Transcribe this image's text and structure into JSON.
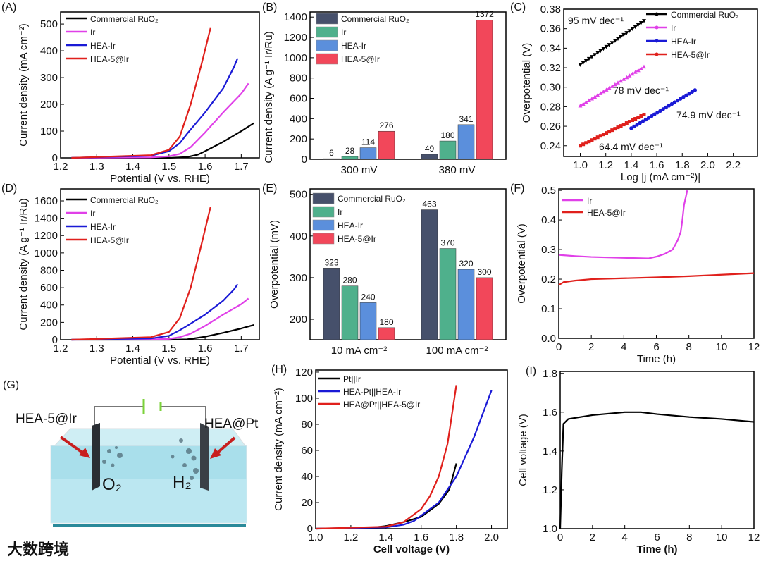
{
  "chart_data": [
    {
      "panel": "A",
      "label": "(A)",
      "type": "line",
      "xlabel": "Potential (V vs. RHE)",
      "ylabel": "Current density (mA cm⁻²)",
      "xlim": [
        1.2,
        1.75
      ],
      "ylim": [
        0,
        545
      ],
      "xticks": [
        1.2,
        1.3,
        1.4,
        1.5,
        1.6,
        1.7
      ],
      "yticks": [
        0,
        100,
        200,
        300,
        400,
        500
      ],
      "series": [
        {
          "name": "Commercial RuO₂",
          "color": "#000000",
          "points": [
            [
              1.23,
              0
            ],
            [
              1.5,
              0
            ],
            [
              1.55,
              3
            ],
            [
              1.58,
              12
            ],
            [
              1.6,
              25
            ],
            [
              1.65,
              60
            ],
            [
              1.7,
              100
            ],
            [
              1.735,
              130
            ]
          ]
        },
        {
          "name": "Ir",
          "color": "#e040e8",
          "points": [
            [
              1.23,
              0
            ],
            [
              1.45,
              2
            ],
            [
              1.5,
              6
            ],
            [
              1.53,
              15
            ],
            [
              1.56,
              40
            ],
            [
              1.6,
              95
            ],
            [
              1.65,
              170
            ],
            [
              1.7,
              240
            ],
            [
              1.72,
              278
            ]
          ]
        },
        {
          "name": "HEA-Ir",
          "color": "#1a1ad6",
          "points": [
            [
              1.23,
              0
            ],
            [
              1.45,
              8
            ],
            [
              1.5,
              25
            ],
            [
              1.53,
              55
            ],
            [
              1.55,
              90
            ],
            [
              1.6,
              170
            ],
            [
              1.65,
              260
            ],
            [
              1.68,
              340
            ],
            [
              1.69,
              372
            ]
          ]
        },
        {
          "name": "HEA-5@Ir",
          "color": "#e0201c",
          "points": [
            [
              1.23,
              0
            ],
            [
              1.45,
              10
            ],
            [
              1.5,
              30
            ],
            [
              1.53,
              80
            ],
            [
              1.56,
              200
            ],
            [
              1.59,
              350
            ],
            [
              1.615,
              485
            ]
          ]
        }
      ]
    },
    {
      "panel": "B",
      "label": "(B)",
      "type": "bar",
      "xlabel": "",
      "ylabel": "Current density (A g⁻¹ Ir/Ru)",
      "ylim": [
        0,
        1450
      ],
      "yticks": [
        0,
        200,
        400,
        600,
        800,
        1000,
        1200,
        1400
      ],
      "categories": [
        "300 mV",
        "380 mV"
      ],
      "series": [
        {
          "name": "Commercial RuO₂",
          "color": "#46506b",
          "values": [
            6,
            49
          ]
        },
        {
          "name": "Ir",
          "color": "#4fb08c",
          "values": [
            28,
            180
          ]
        },
        {
          "name": "HEA-Ir",
          "color": "#5b8fdc",
          "values": [
            114,
            341
          ]
        },
        {
          "name": "HEA-5@Ir",
          "color": "#f2475a",
          "values": [
            276,
            1372
          ]
        }
      ]
    },
    {
      "panel": "C",
      "label": "(C)",
      "type": "scatter",
      "xlabel": "Log |j (mA cm⁻²)|",
      "ylabel": "Overpotential (V)",
      "xlim": [
        0.87,
        2.39
      ],
      "ylim": [
        0.229,
        0.38
      ],
      "xticks": [
        1.0,
        1.2,
        1.4,
        1.6,
        1.8,
        2.0,
        2.2
      ],
      "yticks": [
        0.24,
        0.26,
        0.28,
        0.3,
        0.32,
        0.34,
        0.36,
        0.38
      ],
      "series": [
        {
          "name": "Commercial RuO₂",
          "color": "#000000",
          "marker": "triangle-down",
          "points": [
            [
              1.0,
              0.323
            ],
            [
              1.5,
              0.368
            ]
          ],
          "tafel_slope": "95 mV dec⁻¹"
        },
        {
          "name": "Ir",
          "color": "#e040e8",
          "marker": "triangle-up",
          "points": [
            [
              1.0,
              0.281
            ],
            [
              1.5,
              0.321
            ]
          ],
          "tafel_slope": "78 mV dec⁻¹"
        },
        {
          "name": "HEA-Ir",
          "color": "#1a1ad6",
          "marker": "circle",
          "points": [
            [
              1.4,
              0.258
            ],
            [
              1.9,
              0.297
            ]
          ],
          "tafel_slope": "74.9 mV dec⁻¹"
        },
        {
          "name": "HEA-5@Ir",
          "color": "#e0201c",
          "marker": "square",
          "points": [
            [
              1.0,
              0.24
            ],
            [
              1.5,
              0.272
            ]
          ],
          "tafel_slope": "64.4 mV dec⁻¹"
        }
      ]
    },
    {
      "panel": "D",
      "label": "(D)",
      "type": "line",
      "xlabel": "Potential (V vs. RHE)",
      "ylabel": "Current density (A g⁻¹ Ir/Ru)",
      "xlim": [
        1.2,
        1.75
      ],
      "ylim": [
        0,
        1738
      ],
      "xticks": [
        1.2,
        1.3,
        1.4,
        1.5,
        1.6,
        1.7
      ],
      "yticks": [
        0,
        200,
        400,
        600,
        800,
        1000,
        1200,
        1400,
        1600
      ],
      "series": [
        {
          "name": "Commercial RuO₂",
          "color": "#000000",
          "points": [
            [
              1.23,
              0
            ],
            [
              1.5,
              0
            ],
            [
              1.55,
              4
            ],
            [
              1.6,
              35
            ],
            [
              1.65,
              80
            ],
            [
              1.7,
              130
            ],
            [
              1.735,
              170
            ]
          ]
        },
        {
          "name": "Ir",
          "color": "#e040e8",
          "points": [
            [
              1.23,
              0
            ],
            [
              1.45,
              3
            ],
            [
              1.5,
              10
            ],
            [
              1.53,
              30
            ],
            [
              1.56,
              70
            ],
            [
              1.6,
              160
            ],
            [
              1.65,
              290
            ],
            [
              1.7,
              410
            ],
            [
              1.72,
              475
            ]
          ]
        },
        {
          "name": "HEA-Ir",
          "color": "#1a1ad6",
          "points": [
            [
              1.23,
              0
            ],
            [
              1.45,
              15
            ],
            [
              1.5,
              45
            ],
            [
              1.53,
              110
            ],
            [
              1.55,
              160
            ],
            [
              1.6,
              290
            ],
            [
              1.65,
              450
            ],
            [
              1.68,
              580
            ],
            [
              1.69,
              640
            ]
          ]
        },
        {
          "name": "HEA-5@Ir",
          "color": "#e0201c",
          "points": [
            [
              1.23,
              0
            ],
            [
              1.45,
              30
            ],
            [
              1.5,
              90
            ],
            [
              1.53,
              250
            ],
            [
              1.56,
              600
            ],
            [
              1.59,
              1100
            ],
            [
              1.615,
              1530
            ]
          ]
        }
      ]
    },
    {
      "panel": "E",
      "label": "(E)",
      "type": "bar",
      "xlabel": "",
      "ylabel": "Overpotential (mV)",
      "ylim": [
        151,
        513
      ],
      "yticks": [
        200,
        300,
        400,
        500
      ],
      "categories": [
        "10 mA cm⁻²",
        "100 mA cm⁻²"
      ],
      "series": [
        {
          "name": "Commercial RuO₂",
          "color": "#46506b",
          "values": [
            323,
            463
          ]
        },
        {
          "name": "Ir",
          "color": "#4fb08c",
          "values": [
            280,
            370
          ]
        },
        {
          "name": "HEA-Ir",
          "color": "#5b8fdc",
          "values": [
            240,
            320
          ]
        },
        {
          "name": "HEA-5@Ir",
          "color": "#f2475a",
          "values": [
            180,
            300
          ]
        }
      ]
    },
    {
      "panel": "F",
      "label": "(F)",
      "type": "line",
      "xlabel": "Time (h)",
      "ylabel": "Overpotential (V)",
      "xlim": [
        0,
        12
      ],
      "ylim": [
        0,
        0.505
      ],
      "xticks": [
        0,
        2,
        4,
        6,
        8,
        10,
        12
      ],
      "yticks": [
        0.0,
        0.1,
        0.2,
        0.3,
        0.4,
        0.5
      ],
      "series": [
        {
          "name": "Ir",
          "color": "#e040e8",
          "points": [
            [
              0,
              0.282
            ],
            [
              1,
              0.278
            ],
            [
              2,
              0.275
            ],
            [
              4,
              0.272
            ],
            [
              5.5,
              0.27
            ],
            [
              6,
              0.276
            ],
            [
              6.5,
              0.285
            ],
            [
              7,
              0.3
            ],
            [
              7.3,
              0.33
            ],
            [
              7.5,
              0.36
            ],
            [
              7.6,
              0.4
            ],
            [
              7.7,
              0.45
            ],
            [
              7.9,
              0.5
            ]
          ]
        },
        {
          "name": "HEA-5@Ir",
          "color": "#e0201c",
          "points": [
            [
              0,
              0.18
            ],
            [
              0.3,
              0.19
            ],
            [
              1,
              0.195
            ],
            [
              2,
              0.2
            ],
            [
              4,
              0.203
            ],
            [
              6,
              0.206
            ],
            [
              8,
              0.21
            ],
            [
              10,
              0.215
            ],
            [
              12,
              0.22
            ]
          ]
        }
      ]
    },
    {
      "panel": "H",
      "label": "(H)",
      "type": "line",
      "xlabel": "Cell voltage (V)",
      "ylabel": "Current density (mA cm⁻²)",
      "xlim": [
        1.0,
        2.09
      ],
      "ylim": [
        0,
        121.6
      ],
      "xticks": [
        1.0,
        1.2,
        1.4,
        1.6,
        1.8,
        2.0
      ],
      "yticks": [
        0,
        20,
        40,
        60,
        80,
        100,
        120
      ],
      "series": [
        {
          "name": "Pt||Ir",
          "color": "#000000",
          "points": [
            [
              1.0,
              0
            ],
            [
              1.3,
              0.5
            ],
            [
              1.4,
              2
            ],
            [
              1.5,
              5
            ],
            [
              1.6,
              9
            ],
            [
              1.7,
              19
            ],
            [
              1.76,
              30
            ],
            [
              1.8,
              50
            ]
          ]
        },
        {
          "name": "HEA-Pt||HEA-Ir",
          "color": "#1a1ad6",
          "points": [
            [
              1.0,
              0
            ],
            [
              1.4,
              1
            ],
            [
              1.5,
              3
            ],
            [
              1.56,
              6
            ],
            [
              1.6,
              10
            ],
            [
              1.7,
              20
            ],
            [
              1.8,
              40
            ],
            [
              1.9,
              70
            ],
            [
              2.0,
              106
            ]
          ]
        },
        {
          "name": "HEA@Pt||HEA-5@Ir",
          "color": "#e0201c",
          "points": [
            [
              1.0,
              0
            ],
            [
              1.4,
              1.5
            ],
            [
              1.5,
              5
            ],
            [
              1.6,
              15
            ],
            [
              1.65,
              25
            ],
            [
              1.7,
              40
            ],
            [
              1.75,
              65
            ],
            [
              1.8,
              110
            ]
          ]
        }
      ]
    },
    {
      "panel": "I",
      "label": "(I)",
      "type": "line",
      "xlabel": "Time (h)",
      "ylabel": "Cell voltage (V)",
      "xlim": [
        0,
        12
      ],
      "ylim": [
        1.0,
        1.81
      ],
      "xticks": [
        0,
        2,
        4,
        6,
        8,
        10,
        12
      ],
      "yticks": [
        1.0,
        1.2,
        1.4,
        1.6,
        1.8
      ],
      "series": [
        {
          "name": "Cell voltage",
          "color": "#000000",
          "points": [
            [
              0,
              1.0
            ],
            [
              0.1,
              1.3
            ],
            [
              0.2,
              1.54
            ],
            [
              0.5,
              1.565
            ],
            [
              2,
              1.585
            ],
            [
              4,
              1.6
            ],
            [
              5,
              1.6
            ],
            [
              6,
              1.59
            ],
            [
              8,
              1.575
            ],
            [
              10,
              1.565
            ],
            [
              12,
              1.55
            ]
          ]
        }
      ]
    }
  ],
  "diagram_G": {
    "label": "(G)",
    "anode_label": "HEA-5@Ir",
    "cathode_label": "HEA@Pt",
    "anode_gas": "O₂",
    "cathode_gas": "H₂"
  },
  "watermark": "大数跨境"
}
